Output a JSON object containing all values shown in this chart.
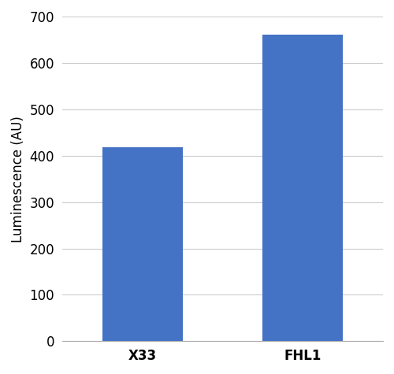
{
  "categories": [
    "X33",
    "FHL1"
  ],
  "values": [
    418,
    660
  ],
  "bar_color": "#4472C4",
  "ylabel": "Luminescence (AU)",
  "ylim": [
    0,
    700
  ],
  "yticks": [
    0,
    100,
    200,
    300,
    400,
    500,
    600,
    700
  ],
  "bar_width": 0.35,
  "background_color": "#ffffff",
  "grid_color": "#cccccc",
  "tick_label_fontsize": 12,
  "ylabel_fontsize": 12,
  "x_positions": [
    0.3,
    1.0
  ]
}
